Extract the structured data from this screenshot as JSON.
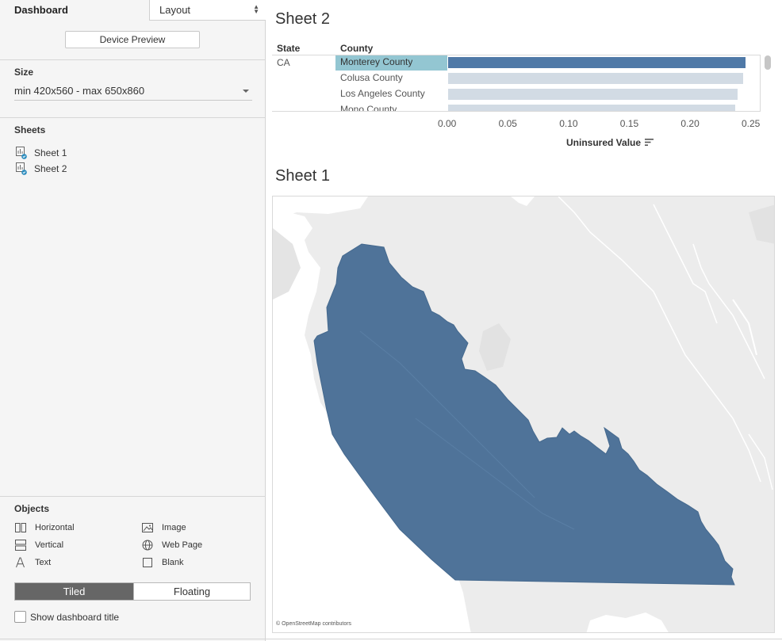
{
  "left_panel": {
    "tabs": {
      "dashboard": "Dashboard",
      "layout": "Layout"
    },
    "device_preview_label": "Device Preview",
    "size": {
      "title": "Size",
      "value": "min 420x560 - max 650x860"
    },
    "sheets": {
      "title": "Sheets",
      "items": [
        {
          "label": "Sheet 1",
          "icon": "sheet-icon"
        },
        {
          "label": "Sheet 2",
          "icon": "sheet-icon"
        }
      ]
    },
    "objects": {
      "title": "Objects",
      "items": [
        {
          "label": "Horizontal",
          "icon": "horizontal-container-icon"
        },
        {
          "label": "Image",
          "icon": "image-icon"
        },
        {
          "label": "Vertical",
          "icon": "vertical-container-icon"
        },
        {
          "label": "Web Page",
          "icon": "globe-icon"
        },
        {
          "label": "Text",
          "icon": "text-icon"
        },
        {
          "label": "Blank",
          "icon": "blank-icon"
        }
      ]
    },
    "layout_toggle": {
      "tiled": "Tiled",
      "floating": "Floating",
      "selected": "Tiled"
    },
    "show_title": {
      "label": "Show dashboard title",
      "checked": false
    }
  },
  "sheet2": {
    "title": "Sheet 2",
    "headers": {
      "state": "State",
      "county": "County"
    },
    "state": "CA",
    "selected_county": "Monterey County",
    "colors": {
      "selected_bar": "#4f79a7",
      "other_bar": "#d2dbe4",
      "row_highlight": "#93c6d2"
    },
    "chart_data": {
      "type": "bar",
      "orientation": "horizontal",
      "categories": [
        "Monterey County",
        "Colusa County",
        "Los Angeles County",
        "Mono County"
      ],
      "values": [
        0.245,
        0.243,
        0.238,
        0.236
      ],
      "xlabel": "Uninsured Value",
      "xlim": [
        0,
        0.25
      ],
      "xticks": [
        "0.00",
        "0.05",
        "0.10",
        "0.15",
        "0.20",
        "0.25"
      ],
      "grid": false
    }
  },
  "sheet1": {
    "title": "Sheet 1",
    "map_attribution": "© OpenStreetMap contributors",
    "highlighted_region": "Monterey County",
    "colors": {
      "region_fill": "#4f7399",
      "land": "#ececec",
      "water": "#ffffff"
    }
  }
}
